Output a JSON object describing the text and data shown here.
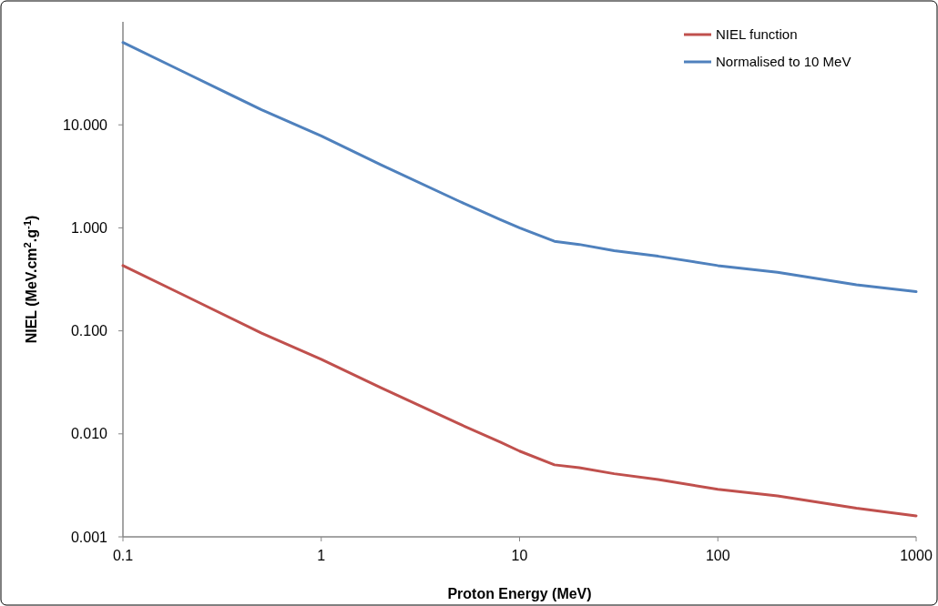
{
  "chart_data": {
    "type": "line",
    "xlabel": "Proton Energy (MeV)",
    "ylabel": "NIEL (MeV.cm$^{2}$.g$^{-1}$)",
    "x": [
      0.1,
      0.2,
      0.5,
      1,
      2,
      5,
      8,
      10,
      15,
      20,
      30,
      50,
      100,
      200,
      500,
      1000
    ],
    "series": [
      {
        "name": "NIEL function",
        "color": "#c0504d",
        "values": [
          0.43,
          0.225,
          0.095,
          0.053,
          0.028,
          0.0124,
          0.0083,
          0.0068,
          0.005,
          0.0047,
          0.0041,
          0.0036,
          0.0029,
          0.0025,
          0.0019,
          0.0016
        ]
      },
      {
        "name": "Normalised to 10 MeV",
        "color": "#4f81bd",
        "values": [
          63,
          33,
          14,
          7.8,
          4.1,
          1.8,
          1.2,
          1.0,
          0.74,
          0.69,
          0.6,
          0.53,
          0.43,
          0.37,
          0.28,
          0.24
        ]
      }
    ],
    "log": "xy",
    "xlim": [
      0.1,
      1000
    ],
    "ylim": [
      0.001,
      100
    ],
    "xticks": [
      0.1,
      1,
      10,
      100,
      1000
    ],
    "yticks": [
      0.001,
      {
        "value": 0.01,
        "label": "0.010"
      },
      {
        "value": 0.1,
        "label": "0.100"
      },
      {
        "value": 1,
        "label": "1.000"
      },
      {
        "value": 10,
        "label": "10.000"
      }
    ],
    "grid": false,
    "legend": "top right",
    "marker": "none",
    "line_style": "solid"
  }
}
